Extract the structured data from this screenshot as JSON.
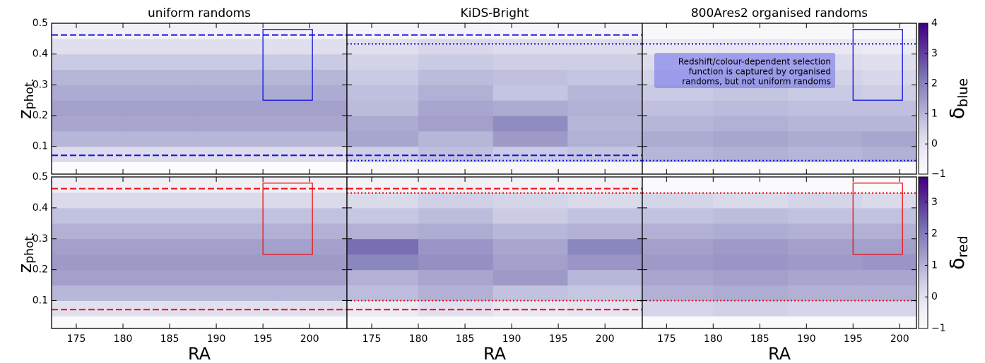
{
  "chart_data": [
    {
      "type": "heatmap",
      "title": "uniform randoms",
      "ylabel": "z",
      "ylabel_sub": "phot.",
      "xtick_labels": false,
      "ytick_labels": true,
      "xlim": [
        172.35,
        204
      ],
      "xticks": [
        175,
        180,
        185,
        190,
        195,
        200
      ],
      "ylim": [
        0.01,
        0.5
      ],
      "yticks": [
        0.1,
        0.2,
        0.3,
        0.4,
        0.5
      ],
      "x_bins": [
        172.35,
        180,
        188,
        196,
        204
      ],
      "y_bins": [
        0.01,
        0.05,
        0.1,
        0.15,
        0.2,
        0.25,
        0.3,
        0.35,
        0.4,
        0.45,
        0.5
      ],
      "clim": [
        -1,
        4
      ],
      "colormap": "Purples",
      "values": [
        [
          -1,
          -1,
          -1,
          -1
        ],
        [
          0.2,
          0.2,
          0.2,
          0.2
        ],
        [
          1.0,
          1.0,
          1.0,
          1.0
        ],
        [
          1.3,
          1.3,
          1.3,
          1.3
        ],
        [
          1.4,
          1.4,
          1.4,
          1.4
        ],
        [
          1.2,
          1.2,
          1.2,
          1.2
        ],
        [
          1.0,
          1.0,
          1.0,
          1.0
        ],
        [
          0.6,
          0.6,
          0.6,
          0.6
        ],
        [
          0.1,
          0.1,
          0.1,
          0.1
        ],
        [
          -0.5,
          -0.5,
          -0.5,
          -0.5
        ]
      ],
      "hlines": [
        {
          "value": 0.462,
          "style": "dashed",
          "color": "#1010e0"
        },
        {
          "value": 0.071,
          "style": "dashed",
          "color": "#1010e0"
        }
      ],
      "box": {
        "x": [
          195,
          200.3
        ],
        "y": [
          0.25,
          0.48
        ],
        "color": "#1010e0"
      }
    },
    {
      "type": "heatmap",
      "title": "KiDS-Bright",
      "xtick_labels": false,
      "ytick_labels": false,
      "xlim": [
        172.35,
        204
      ],
      "xticks": [
        175,
        180,
        185,
        190,
        195,
        200
      ],
      "ylim": [
        0.01,
        0.5
      ],
      "yticks": [
        0.1,
        0.2,
        0.3,
        0.4,
        0.5
      ],
      "x_bins": [
        172.35,
        180,
        188,
        196,
        204
      ],
      "y_bins": [
        0.01,
        0.05,
        0.1,
        0.15,
        0.2,
        0.25,
        0.3,
        0.35,
        0.4,
        0.45,
        0.5
      ],
      "clim": [
        -1,
        4
      ],
      "colormap": "Purples",
      "values": [
        [
          -0.8,
          -0.8,
          -0.8,
          -0.8
        ],
        [
          0.5,
          0.8,
          0.6,
          0.7
        ],
        [
          1.3,
          1.0,
          1.5,
          1.1
        ],
        [
          1.2,
          1.4,
          1.8,
          1.0
        ],
        [
          0.9,
          1.3,
          1.2,
          1.1
        ],
        [
          0.8,
          1.1,
          0.7,
          1.0
        ],
        [
          0.6,
          0.9,
          0.8,
          0.7
        ],
        [
          0.4,
          0.6,
          0.5,
          0.5
        ],
        [
          0.1,
          0.3,
          0.2,
          0.2
        ],
        [
          -0.7,
          -0.6,
          -0.7,
          -0.7
        ]
      ],
      "hlines": [
        {
          "value": 0.462,
          "style": "dashed",
          "color": "#1010e0"
        },
        {
          "value": 0.433,
          "style": "dotted",
          "color": "#1010e0"
        },
        {
          "value": 0.071,
          "style": "dashed",
          "color": "#1010e0"
        },
        {
          "value": 0.054,
          "style": "dotted",
          "color": "#1010e0"
        }
      ]
    },
    {
      "type": "heatmap",
      "title": "800Ares2 organised randoms",
      "xtick_labels": false,
      "ytick_labels": false,
      "xlim": [
        172.4,
        201.8
      ],
      "xticks": [
        175,
        180,
        185,
        190,
        195,
        200
      ],
      "ylim": [
        0.01,
        0.5
      ],
      "yticks": [
        0.1,
        0.2,
        0.3,
        0.4,
        0.5
      ],
      "x_bins": [
        172.4,
        180,
        188,
        196,
        201.8
      ],
      "y_bins": [
        0.01,
        0.05,
        0.1,
        0.15,
        0.2,
        0.25,
        0.3,
        0.35,
        0.4,
        0.45,
        0.5
      ],
      "clim": [
        -1,
        4
      ],
      "colormap": "Purples",
      "values": [
        [
          -0.9,
          -0.9,
          -0.9,
          -0.9
        ],
        [
          1.0,
          1.1,
          1.0,
          1.1
        ],
        [
          1.2,
          1.3,
          1.2,
          1.3
        ],
        [
          1.0,
          1.1,
          1.0,
          1.0
        ],
        [
          0.8,
          0.9,
          0.8,
          0.8
        ],
        [
          0.6,
          0.7,
          0.6,
          0.5
        ],
        [
          0.4,
          0.5,
          0.4,
          0.3
        ],
        [
          0.2,
          0.3,
          0.2,
          0.1
        ],
        [
          -0.2,
          -0.1,
          -0.2,
          -0.3
        ],
        [
          -0.8,
          -0.8,
          -0.8,
          -0.8
        ]
      ],
      "hlines": [
        {
          "value": 0.433,
          "style": "dotted",
          "color": "#1010e0"
        },
        {
          "value": 0.054,
          "style": "dotted",
          "color": "#1010e0"
        }
      ],
      "box": {
        "x": [
          195,
          200.3
        ],
        "y": [
          0.25,
          0.48
        ],
        "color": "#1010e0"
      },
      "annotation": [
        "Redshift/colour-dependent selection",
        "function is captured by organised",
        "randoms, but not uniform randoms"
      ],
      "colorbar": {
        "label": "δ",
        "label_sub": "blue",
        "ticks": [
          {
            "value": -1,
            "label": "−1"
          },
          0,
          1,
          2,
          3,
          4
        ]
      }
    },
    {
      "type": "heatmap",
      "xlabel": "RA",
      "ylabel": "z",
      "ylabel_sub": "phot.",
      "xtick_labels": true,
      "ytick_labels": true,
      "xlim": [
        172.35,
        204
      ],
      "xticks": [
        175,
        180,
        185,
        190,
        195,
        200
      ],
      "ylim": [
        0.01,
        0.5
      ],
      "yticks": [
        0.1,
        0.2,
        0.3,
        0.4,
        0.5
      ],
      "x_bins": [
        172.35,
        180,
        188,
        196,
        204
      ],
      "y_bins": [
        0.01,
        0.05,
        0.1,
        0.15,
        0.2,
        0.25,
        0.3,
        0.35,
        0.4,
        0.45,
        0.5
      ],
      "clim": [
        -1,
        3.8
      ],
      "colormap": "Purples",
      "values": [
        [
          -0.9,
          -0.9,
          -0.9,
          -0.9
        ],
        [
          0.0,
          0.0,
          0.0,
          0.0
        ],
        [
          0.9,
          0.9,
          0.9,
          0.9
        ],
        [
          1.3,
          1.3,
          1.3,
          1.3
        ],
        [
          1.4,
          1.4,
          1.4,
          1.4
        ],
        [
          1.3,
          1.3,
          1.3,
          1.3
        ],
        [
          1.0,
          1.0,
          1.0,
          1.0
        ],
        [
          0.7,
          0.7,
          0.7,
          0.7
        ],
        [
          0.2,
          0.2,
          0.2,
          0.2
        ],
        [
          -0.5,
          -0.5,
          -0.5,
          -0.5
        ]
      ],
      "hlines": [
        {
          "value": 0.462,
          "style": "dashed",
          "color": "#f01010"
        },
        {
          "value": 0.071,
          "style": "dashed",
          "color": "#f01010"
        }
      ],
      "box": {
        "x": [
          195,
          200.3
        ],
        "y": [
          0.25,
          0.48
        ],
        "color": "#f01010"
      }
    },
    {
      "type": "heatmap",
      "xlabel": "RA",
      "xtick_labels": true,
      "ytick_labels": false,
      "xlim": [
        172.35,
        204
      ],
      "xticks": [
        175,
        180,
        185,
        190,
        195,
        200
      ],
      "ylim": [
        0.01,
        0.5
      ],
      "yticks": [
        0.1,
        0.2,
        0.3,
        0.4,
        0.5
      ],
      "x_bins": [
        172.35,
        180,
        188,
        196,
        204
      ],
      "y_bins": [
        0.01,
        0.05,
        0.1,
        0.15,
        0.2,
        0.25,
        0.3,
        0.35,
        0.4,
        0.45,
        0.5
      ],
      "clim": [
        -1,
        3.8
      ],
      "colormap": "Purples",
      "values": [
        [
          -0.9,
          -0.9,
          -0.9,
          -0.9
        ],
        [
          -0.3,
          0.0,
          -0.2,
          -0.1
        ],
        [
          0.8,
          1.0,
          0.7,
          0.6
        ],
        [
          1.0,
          1.2,
          1.4,
          0.9
        ],
        [
          1.8,
          1.6,
          1.3,
          1.5
        ],
        [
          2.2,
          1.5,
          1.2,
          1.8
        ],
        [
          1.0,
          1.1,
          0.9,
          1.0
        ],
        [
          0.6,
          0.8,
          0.5,
          0.7
        ],
        [
          0.2,
          0.4,
          0.3,
          0.2
        ],
        [
          -0.6,
          -0.5,
          -0.6,
          -0.6
        ]
      ],
      "hlines": [
        {
          "value": 0.462,
          "style": "dashed",
          "color": "#f01010"
        },
        {
          "value": 0.448,
          "style": "dotted",
          "color": "#f01010"
        },
        {
          "value": 0.1,
          "style": "dotted",
          "color": "#f01010"
        },
        {
          "value": 0.071,
          "style": "dashed",
          "color": "#f01010"
        }
      ]
    },
    {
      "type": "heatmap",
      "xlabel": "RA",
      "xtick_labels": true,
      "ytick_labels": false,
      "xlim": [
        172.4,
        201.8
      ],
      "xticks": [
        175,
        180,
        185,
        190,
        195,
        200
      ],
      "ylim": [
        0.01,
        0.5
      ],
      "yticks": [
        0.1,
        0.2,
        0.3,
        0.4,
        0.5
      ],
      "x_bins": [
        172.4,
        180,
        188,
        196,
        201.8
      ],
      "y_bins": [
        0.01,
        0.05,
        0.1,
        0.15,
        0.2,
        0.25,
        0.3,
        0.35,
        0.4,
        0.45,
        0.5
      ],
      "clim": [
        -1,
        3.8
      ],
      "colormap": "Purples",
      "values": [
        [
          -0.9,
          -0.9,
          -0.9,
          -0.9
        ],
        [
          0.3,
          0.4,
          0.3,
          0.3
        ],
        [
          1.0,
          1.1,
          1.0,
          1.0
        ],
        [
          1.2,
          1.3,
          1.2,
          1.2
        ],
        [
          1.4,
          1.5,
          1.4,
          1.5
        ],
        [
          1.3,
          1.4,
          1.3,
          1.3
        ],
        [
          1.0,
          1.1,
          1.0,
          1.0
        ],
        [
          0.7,
          0.8,
          0.7,
          0.7
        ],
        [
          0.3,
          0.2,
          0.3,
          0.2
        ],
        [
          -0.9,
          -0.9,
          -0.9,
          -0.9
        ]
      ],
      "hlines": [
        {
          "value": 0.448,
          "style": "dotted",
          "color": "#f01010"
        },
        {
          "value": 0.1,
          "style": "dotted",
          "color": "#f01010"
        }
      ],
      "box": {
        "x": [
          195,
          200.3
        ],
        "y": [
          0.25,
          0.48
        ],
        "color": "#f01010"
      },
      "colorbar": {
        "label": "δ",
        "label_sub": "red",
        "ticks": [
          {
            "value": -1,
            "label": "−1"
          },
          0,
          1,
          2,
          3
        ]
      }
    }
  ]
}
